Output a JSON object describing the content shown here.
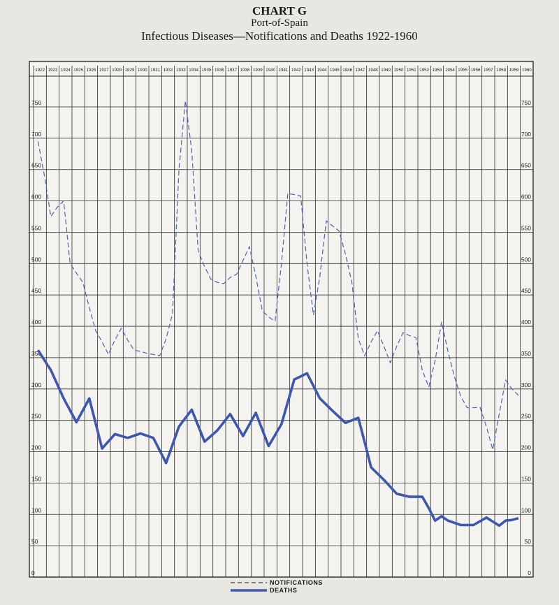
{
  "header": {
    "chart_label": "CHART G",
    "place": "Port-of-Spain",
    "subtitle": "Infectious Diseases—Notifications and Deaths 1922-1960"
  },
  "colors": {
    "notifications": "#4a64b8",
    "deaths": "#3d56b0",
    "grid": "#2b2b2b"
  },
  "chart_data": {
    "type": "line",
    "title": "Infectious Diseases—Notifications and Deaths 1922-1960",
    "x": [
      "1922",
      "1923",
      "1924",
      "1925",
      "1926",
      "1927",
      "1928",
      "1929",
      "1930",
      "1931",
      "1932",
      "1933",
      "1934",
      "1935",
      "1936",
      "1937",
      "1938",
      "1939",
      "1940",
      "1941",
      "1942",
      "1943",
      "1944",
      "1945",
      "1946",
      "1947",
      "1948",
      "1949",
      "1950",
      "1951",
      "1952",
      "1953",
      "1954",
      "1955",
      "1956",
      "1957",
      "1958",
      "1959",
      "1960"
    ],
    "y_ticks": [
      "750",
      "700",
      "650",
      "600",
      "550",
      "500",
      "450",
      "400",
      "350",
      "300",
      "250",
      "200",
      "150",
      "100",
      "50",
      "0"
    ],
    "ylim": [
      0,
      780
    ],
    "series": [
      {
        "name": "NOTIFICATIONS",
        "style": "dashed",
        "points": [
          [
            1922.0,
            695
          ],
          [
            1922.5,
            640
          ],
          [
            1923.0,
            575
          ],
          [
            1923.5,
            590
          ],
          [
            1924.0,
            600
          ],
          [
            1924.5,
            500
          ],
          [
            1925.0,
            485
          ],
          [
            1925.5,
            470
          ],
          [
            1926.0,
            430
          ],
          [
            1926.5,
            393
          ],
          [
            1927.0,
            375
          ],
          [
            1927.5,
            355
          ],
          [
            1928.0,
            378
          ],
          [
            1928.5,
            397
          ],
          [
            1929.0,
            378
          ],
          [
            1929.5,
            362
          ],
          [
            1930.0,
            360
          ],
          [
            1930.5,
            357
          ],
          [
            1931.0,
            355
          ],
          [
            1931.5,
            353
          ],
          [
            1932.0,
            380
          ],
          [
            1932.5,
            420
          ],
          [
            1933.0,
            650
          ],
          [
            1933.5,
            760
          ],
          [
            1934.0,
            680
          ],
          [
            1934.5,
            520
          ],
          [
            1935.0,
            495
          ],
          [
            1935.5,
            475
          ],
          [
            1936.0,
            470
          ],
          [
            1936.5,
            468
          ],
          [
            1937.0,
            478
          ],
          [
            1937.5,
            483
          ],
          [
            1938.0,
            505
          ],
          [
            1938.5,
            527
          ],
          [
            1939.0,
            480
          ],
          [
            1939.5,
            425
          ],
          [
            1940.0,
            415
          ],
          [
            1940.5,
            408
          ],
          [
            1941.0,
            500
          ],
          [
            1941.5,
            612
          ],
          [
            1942.0,
            610
          ],
          [
            1942.5,
            608
          ],
          [
            1943.0,
            500
          ],
          [
            1943.5,
            418
          ],
          [
            1944.0,
            480
          ],
          [
            1944.5,
            568
          ],
          [
            1945.0,
            560
          ],
          [
            1945.5,
            552
          ],
          [
            1946.0,
            515
          ],
          [
            1946.5,
            470
          ],
          [
            1947.0,
            380
          ],
          [
            1947.5,
            353
          ],
          [
            1948.0,
            375
          ],
          [
            1948.5,
            393
          ],
          [
            1949.0,
            368
          ],
          [
            1949.5,
            342
          ],
          [
            1950.0,
            368
          ],
          [
            1950.5,
            390
          ],
          [
            1951.0,
            385
          ],
          [
            1951.5,
            382
          ],
          [
            1952.0,
            330
          ],
          [
            1952.5,
            303
          ],
          [
            1953.0,
            345
          ],
          [
            1953.5,
            407
          ],
          [
            1954.0,
            360
          ],
          [
            1954.5,
            320
          ],
          [
            1955.0,
            288
          ],
          [
            1955.5,
            270
          ],
          [
            1956.0,
            270
          ],
          [
            1956.5,
            271
          ],
          [
            1957.0,
            240
          ],
          [
            1957.5,
            203
          ],
          [
            1958.0,
            260
          ],
          [
            1958.5,
            314
          ],
          [
            1959.0,
            300
          ],
          [
            1959.5,
            290
          ]
        ]
      },
      {
        "name": "DEATHS",
        "style": "solid",
        "points": [
          [
            1922.0,
            362
          ],
          [
            1923.0,
            330
          ],
          [
            1924.0,
            285
          ],
          [
            1925.0,
            247
          ],
          [
            1926.0,
            285
          ],
          [
            1927.0,
            205
          ],
          [
            1928.0,
            228
          ],
          [
            1929.0,
            222
          ],
          [
            1930.0,
            229
          ],
          [
            1931.0,
            222
          ],
          [
            1932.0,
            182
          ],
          [
            1933.0,
            240
          ],
          [
            1934.0,
            267
          ],
          [
            1935.0,
            216
          ],
          [
            1936.0,
            234
          ],
          [
            1937.0,
            260
          ],
          [
            1938.0,
            225
          ],
          [
            1939.0,
            262
          ],
          [
            1940.0,
            209
          ],
          [
            1941.0,
            244
          ],
          [
            1942.0,
            315
          ],
          [
            1943.0,
            325
          ],
          [
            1944.0,
            285
          ],
          [
            1945.0,
            265
          ],
          [
            1946.0,
            246
          ],
          [
            1947.0,
            254
          ],
          [
            1947.5,
            215
          ],
          [
            1948.0,
            175
          ],
          [
            1949.0,
            155
          ],
          [
            1950.0,
            133
          ],
          [
            1951.0,
            128
          ],
          [
            1952.0,
            128
          ],
          [
            1952.5,
            110
          ],
          [
            1953.0,
            90
          ],
          [
            1953.5,
            97
          ],
          [
            1954.0,
            90
          ],
          [
            1955.0,
            83
          ],
          [
            1956.0,
            83
          ],
          [
            1957.0,
            95
          ],
          [
            1958.0,
            82
          ],
          [
            1958.5,
            90
          ],
          [
            1959.0,
            91
          ],
          [
            1959.5,
            94
          ]
        ]
      }
    ],
    "grid": true,
    "legend": "bottom-center"
  }
}
